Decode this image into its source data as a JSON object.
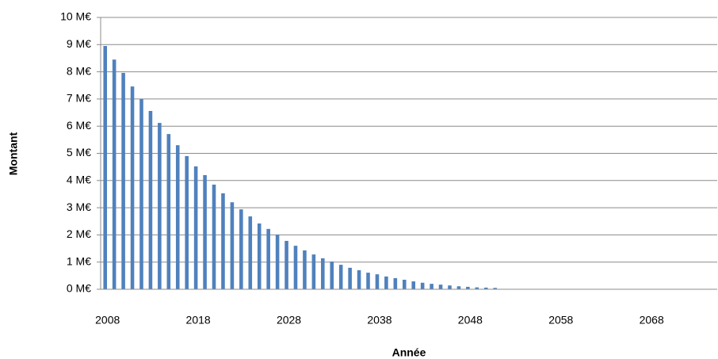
{
  "chart_data": {
    "type": "bar",
    "x_label": "Année",
    "y_label": "Montant",
    "categories": [
      "2008",
      null,
      null,
      null,
      null,
      null,
      null,
      null,
      null,
      null,
      "2018",
      null,
      null,
      null,
      null,
      null,
      null,
      null,
      null,
      null,
      "2028",
      null,
      null,
      null,
      null,
      null,
      null,
      null,
      null,
      null,
      "2038",
      null,
      null,
      null,
      null,
      null,
      null,
      null,
      null,
      null,
      "2048",
      null,
      null,
      null,
      null,
      null,
      null,
      null,
      null,
      null,
      "2058",
      null,
      null,
      null,
      null,
      null,
      null,
      null,
      null,
      null,
      "2068",
      null,
      null,
      null,
      null,
      null,
      null,
      null
    ],
    "values": [
      8.95,
      8.45,
      7.96,
      7.46,
      7.0,
      6.56,
      6.12,
      5.71,
      5.3,
      4.9,
      4.52,
      4.2,
      3.85,
      3.53,
      3.2,
      2.94,
      2.68,
      2.42,
      2.22,
      2.01,
      1.78,
      1.6,
      1.43,
      1.28,
      1.14,
      1.02,
      0.9,
      0.79,
      0.7,
      0.61,
      0.55,
      0.47,
      0.41,
      0.35,
      0.29,
      0.24,
      0.2,
      0.17,
      0.14,
      0.11,
      0.09,
      0.07,
      0.06,
      0.05,
      0,
      0,
      0,
      0,
      0,
      0,
      0,
      0,
      0,
      0,
      0,
      0,
      0,
      0,
      0,
      0,
      0,
      0,
      0,
      0,
      0,
      0,
      0,
      0
    ],
    "color": "#4f81bd",
    "ylim": [
      0,
      10
    ],
    "yticks": [
      {
        "value": 0,
        "label": "0 M€"
      },
      {
        "value": 1,
        "label": "1 M€"
      },
      {
        "value": 2,
        "label": "2 M€"
      },
      {
        "value": 3,
        "label": "3 M€"
      },
      {
        "value": 4,
        "label": "4 M€"
      },
      {
        "value": 5,
        "label": "5 M€"
      },
      {
        "value": 6,
        "label": "6 M€"
      },
      {
        "value": 7,
        "label": "7 M€"
      },
      {
        "value": 8,
        "label": "8 M€"
      },
      {
        "value": 9,
        "label": "9 M€"
      },
      {
        "value": 10,
        "label": "10 M€"
      }
    ],
    "grid": true
  }
}
